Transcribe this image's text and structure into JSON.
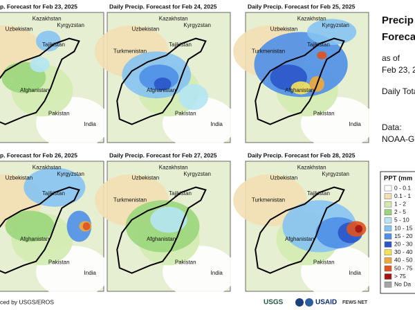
{
  "panels": [
    {
      "title": "p. Forecast for Feb 23, 2025",
      "labels": [
        "Kazakhstan",
        "Uzbekistan",
        "Kyrgyzstan",
        "Tajikistan",
        "Afghanistan",
        "Pakistan",
        "India"
      ]
    },
    {
      "title": "Daily Precip. Forecast for Feb 24, 2025",
      "labels": [
        "Kazakhstan",
        "Uzbekistan",
        "Kyrgyzstan",
        "Turkmenistan",
        "Tajikistan",
        "Afghanistan",
        "Pakistan",
        "India"
      ]
    },
    {
      "title": "Daily Precip. Forecast for Feb 25, 2025",
      "labels": [
        "Kazakhstan",
        "Uzbekistan",
        "Kyrgyzstan",
        "Turkmenistan",
        "Tajikistan",
        "Afghanistan",
        "Pakistan",
        "India"
      ]
    },
    {
      "title": "p. Forecast for Feb 26, 2025",
      "labels": [
        "Kazakhstan",
        "Uzbekistan",
        "Kyrgyzstan",
        "Tajikistan",
        "Afghanistan",
        "Pakistan",
        "India"
      ]
    },
    {
      "title": "Daily Precip. Forecast for Feb 27, 2025",
      "labels": [
        "Kazakhstan",
        "Uzbekistan",
        "Kyrgyzstan",
        "Turkmenistan",
        "Tajikistan",
        "Afghanistan",
        "Pakistan",
        "India"
      ]
    },
    {
      "title": "Daily Precip. Forecast for Feb 28, 2025",
      "labels": [
        "Kazakhstan",
        "Uzbekistan",
        "Kyrgyzstan",
        "Turkmenistan",
        "Tajikistan",
        "Afghanistan",
        "Pakistan",
        "India"
      ]
    }
  ],
  "side": {
    "title_lines": [
      "Precip",
      "Forecas"
    ],
    "as_of": "as of",
    "date": "Feb 23, 2",
    "daily": "Daily Tota",
    "data_label": "Data:",
    "data_source": "NOAA-GF"
  },
  "legend": {
    "title": "PPT (mm",
    "items": [
      {
        "label": "0 - 0.1",
        "color": "#ffffff"
      },
      {
        "label": "0.1 - 1",
        "color": "#f3dfb4"
      },
      {
        "label": "1 - 2",
        "color": "#d3ebb0"
      },
      {
        "label": "2 - 5",
        "color": "#9bd67c"
      },
      {
        "label": "5 - 10",
        "color": "#b4e6f3"
      },
      {
        "label": "10 - 15",
        "color": "#86c3f2"
      },
      {
        "label": "15 - 20",
        "color": "#4f8fe8"
      },
      {
        "label": "20 - 30",
        "color": "#2a56c8"
      },
      {
        "label": "30 - 40",
        "color": "#f4e25a"
      },
      {
        "label": "40 - 50",
        "color": "#f2a93a"
      },
      {
        "label": "50 - 75",
        "color": "#e0521f"
      },
      {
        "label": "> 75",
        "color": "#a3140f"
      },
      {
        "label": "No Da",
        "color": "#a5a5a5"
      }
    ]
  },
  "footer": {
    "credit": "ced by USGS/EROS",
    "logos": [
      "USGS",
      "USAID",
      "FEWS NET"
    ]
  }
}
